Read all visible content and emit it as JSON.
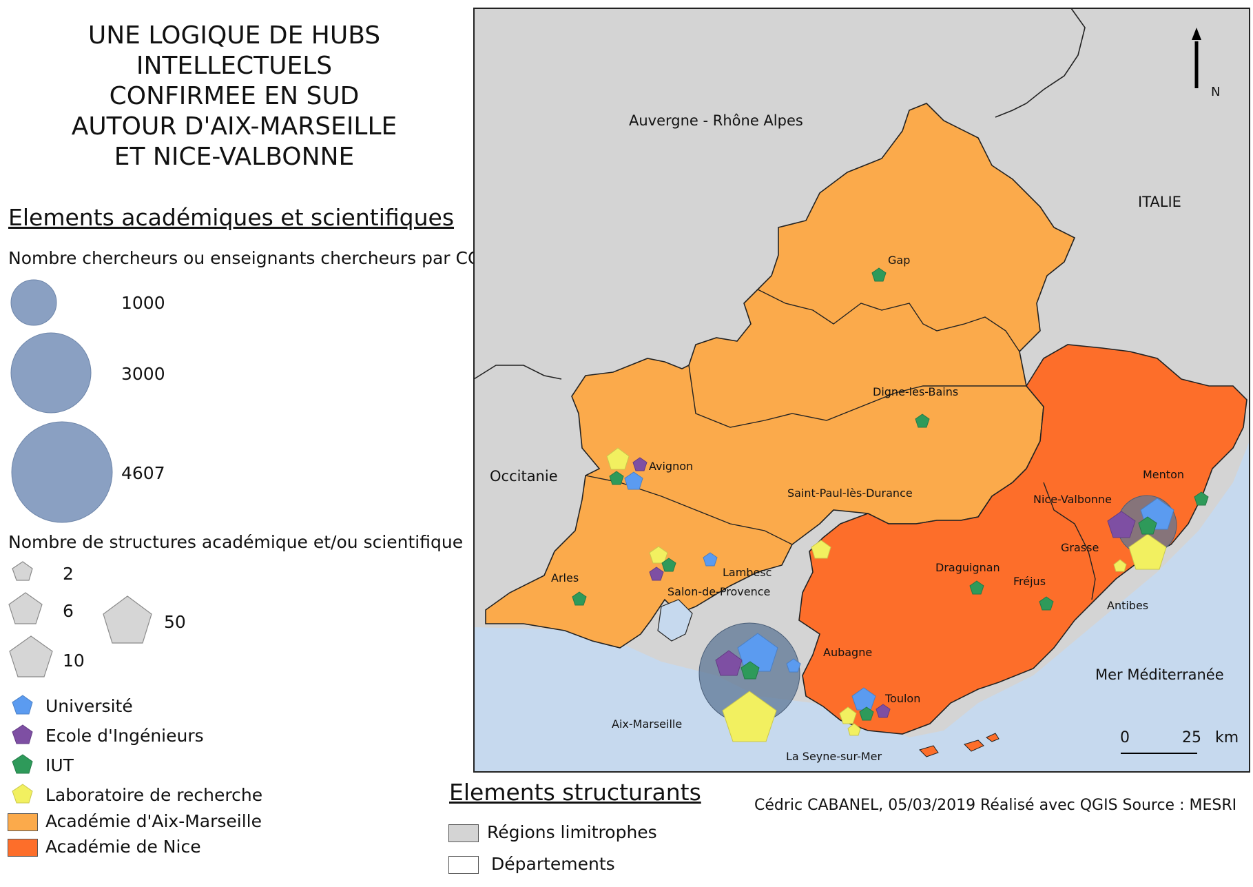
{
  "title_lines": [
    "UNE LOGIQUE DE HUBS",
    "INTELLECTUELS",
    "CONFIRMEE EN SUD",
    "AUTOUR D'AIX-MARSEILLE",
    "ET NICE-VALBONNE"
  ],
  "legend": {
    "section_academic": "Elements académiques et scientifiques",
    "researchers_caption": "Nombre chercheurs ou enseignants chercheurs par COMUE",
    "circle_values": [
      "1000",
      "3000",
      "4607"
    ],
    "structures_caption": "Nombre de structures académique et/ou scientifique",
    "pentagon_values": [
      "2",
      "6",
      "10",
      "50"
    ],
    "types": [
      {
        "label": "Université",
        "color": "#5b9bf0"
      },
      {
        "label": "Ecole d'Ingénieurs",
        "color": "#7e4fa3"
      },
      {
        "label": "IUT",
        "color": "#2e9a5a"
      },
      {
        "label": "Laboratoire de recherche",
        "color": "#f2f060"
      }
    ],
    "academies": [
      {
        "label": "Académie d'Aix-Marseille",
        "color": "#fbaa4b"
      },
      {
        "label": "Académie de Nice",
        "color": "#fd6e2a"
      }
    ],
    "section_structural": "Elements structurants",
    "structural": [
      {
        "label": "Régions limitrophes",
        "color": "#d4d4d4"
      },
      {
        "label": "Départements",
        "color": "#ffffff"
      }
    ]
  },
  "credits": "Cédric CABANEL,  05/03/2019 Réalisé avec QGIS  Source : MESRI",
  "map": {
    "colors": {
      "region": "#d4d4d4",
      "sea": "#c6d9ee",
      "aix": "#fbaa4b",
      "nice": "#fd6e2a",
      "hub": "#5e7796"
    },
    "regions": [
      "Auvergne - Rhône Alpes",
      "ITALIE",
      "Occitanie",
      "Mer Méditerranée"
    ],
    "cities": [
      "Gap",
      "Digne-les-Bains",
      "Avignon",
      "Saint-Paul-lès-Durance",
      "Nice-Valbonne",
      "Menton",
      "Grasse",
      "Lambesc",
      "Arles",
      "Salon-de-Provence",
      "Draguignan",
      "Fréjus",
      "Antibes",
      "Aubagne",
      "Toulon",
      "Aix-Marseille",
      "La Seyne-sur-Mer"
    ],
    "north_label": "N",
    "scale_labels": [
      "0",
      "25",
      "km"
    ]
  }
}
